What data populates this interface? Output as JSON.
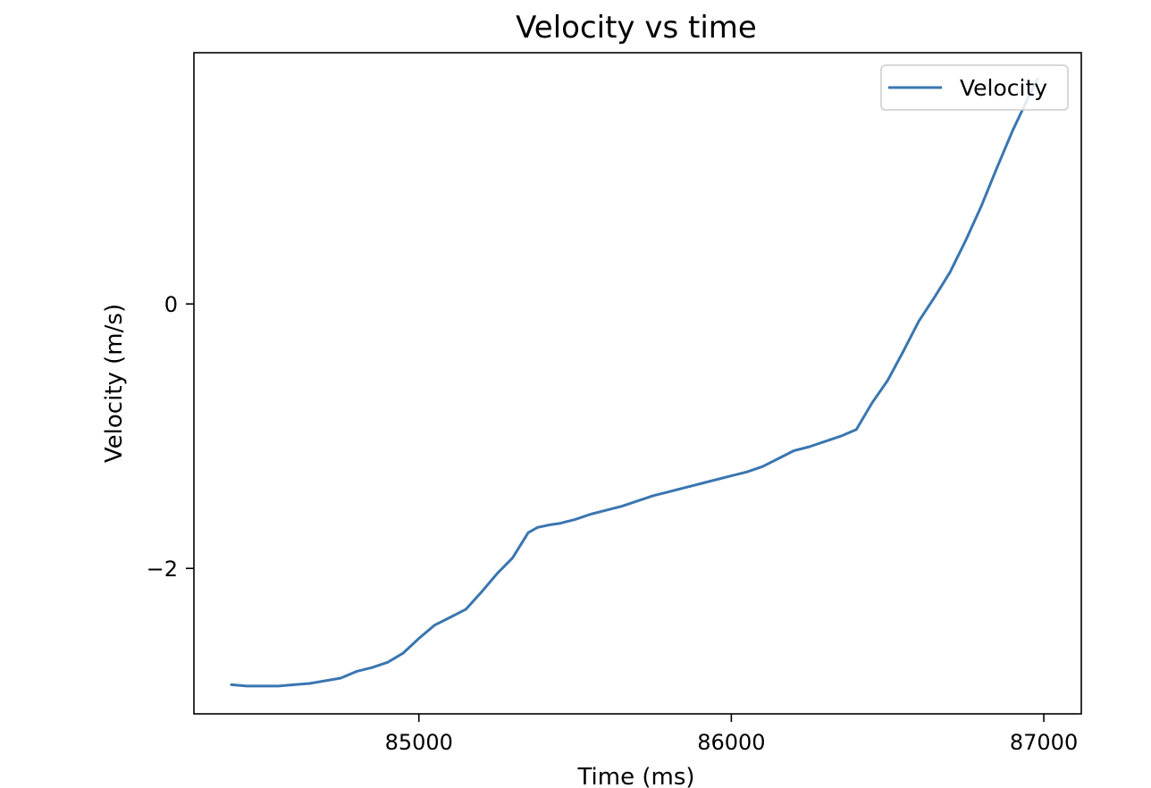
{
  "chart_data": {
    "type": "line",
    "title": "Velocity vs time",
    "xlabel": "Time (ms)",
    "ylabel": "Velocity (m/s)",
    "xlim": [
      84280,
      87120
    ],
    "ylim": [
      -3.1,
      1.9
    ],
    "xticks": [
      85000,
      86000,
      87000
    ],
    "xtick_labels": [
      "85000",
      "86000",
      "87000"
    ],
    "yticks": [
      0,
      -2
    ],
    "ytick_labels": [
      "0",
      "−2"
    ],
    "grid": false,
    "legend_position": "top-right",
    "series": [
      {
        "name": "Velocity",
        "color": "#3a76b0",
        "x": [
          84400,
          84450,
          84500,
          84550,
          84600,
          84650,
          84700,
          84750,
          84800,
          84850,
          84900,
          84950,
          85000,
          85050,
          85100,
          85150,
          85200,
          85250,
          85300,
          85350,
          85380,
          85420,
          85450,
          85500,
          85550,
          85600,
          85650,
          85700,
          85750,
          85800,
          85850,
          85900,
          85950,
          86000,
          86050,
          86100,
          86150,
          86200,
          86250,
          86300,
          86350,
          86400,
          86450,
          86500,
          86550,
          86600,
          86650,
          86700,
          86750,
          86800,
          86850,
          86900,
          86950,
          86980
        ],
        "y": [
          -2.88,
          -2.89,
          -2.89,
          -2.89,
          -2.88,
          -2.87,
          -2.85,
          -2.83,
          -2.78,
          -2.75,
          -2.71,
          -2.64,
          -2.53,
          -2.43,
          -2.37,
          -2.31,
          -2.18,
          -2.04,
          -1.92,
          -1.73,
          -1.69,
          -1.67,
          -1.66,
          -1.63,
          -1.59,
          -1.56,
          -1.53,
          -1.49,
          -1.45,
          -1.42,
          -1.39,
          -1.36,
          -1.33,
          -1.3,
          -1.27,
          -1.23,
          -1.17,
          -1.11,
          -1.08,
          -1.04,
          -1.0,
          -0.95,
          -0.75,
          -0.58,
          -0.36,
          -0.13,
          0.05,
          0.24,
          0.48,
          0.74,
          1.03,
          1.31,
          1.56,
          1.7
        ]
      }
    ]
  }
}
